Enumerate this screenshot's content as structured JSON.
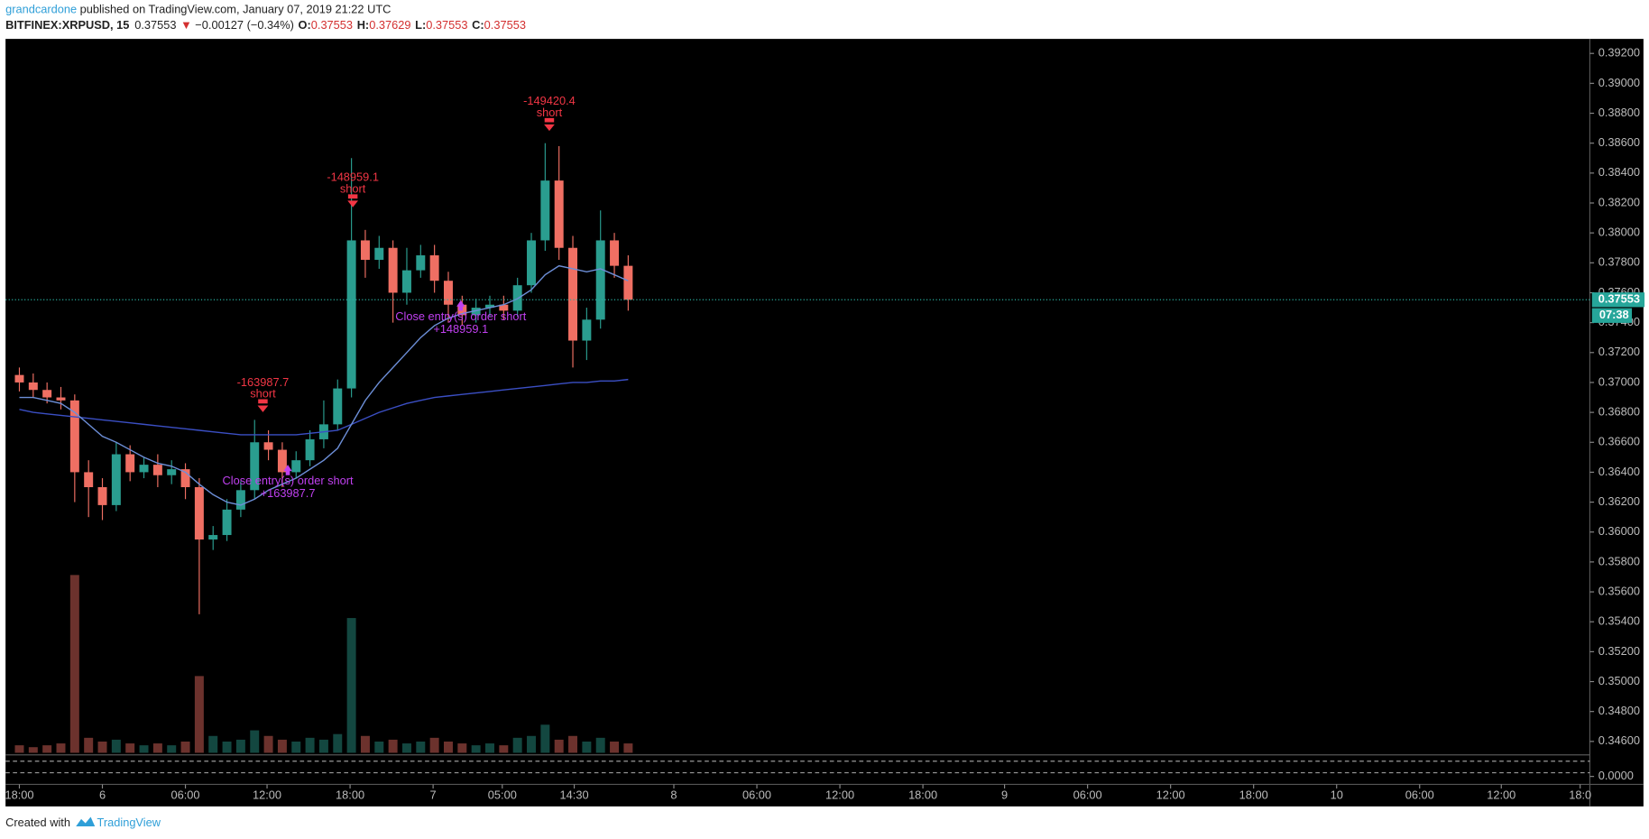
{
  "header": {
    "author": "grandcardone",
    "published": "published on TradingView.com, January 07, 2019 21:22 UTC",
    "symbol": "BITFINEX:XRPUSD, 15",
    "last": "0.37553",
    "change": "−0.00127 (−0.34%)",
    "ohlc": [
      {
        "key": "O:",
        "value": "0.37553"
      },
      {
        "key": "H:",
        "value": "0.37629"
      },
      {
        "key": "L:",
        "value": "0.37553"
      },
      {
        "key": "C:",
        "value": "0.37553"
      }
    ]
  },
  "footer": {
    "text": "Created with",
    "brand": "TradingView"
  },
  "chart_data": {
    "type": "candlestick",
    "x": [
      0,
      1,
      2,
      3,
      4,
      5,
      6,
      7,
      8,
      9,
      10,
      11,
      12,
      13,
      14,
      15,
      16,
      17,
      18,
      19,
      20,
      21,
      22,
      23,
      24,
      25,
      26,
      27,
      28,
      29,
      30,
      31,
      32,
      33,
      34,
      35,
      36,
      37,
      38,
      39,
      40,
      41,
      42,
      43,
      44
    ],
    "open": [
      0.3705,
      0.37,
      0.3695,
      0.369,
      0.3688,
      0.364,
      0.363,
      0.3618,
      0.3652,
      0.364,
      0.3645,
      0.3638,
      0.3642,
      0.363,
      0.3595,
      0.3598,
      0.3615,
      0.3628,
      0.366,
      0.3655,
      0.364,
      0.3648,
      0.3662,
      0.3672,
      0.3696,
      0.3795,
      0.3782,
      0.379,
      0.376,
      0.3775,
      0.3785,
      0.3768,
      0.3752,
      0.3745,
      0.375,
      0.3752,
      0.3748,
      0.3765,
      0.3795,
      0.3835,
      0.379,
      0.3728,
      0.3742,
      0.3795,
      0.3778
    ],
    "high": [
      0.371,
      0.3706,
      0.37,
      0.3697,
      0.3692,
      0.3648,
      0.3636,
      0.366,
      0.3658,
      0.365,
      0.3652,
      0.3648,
      0.3646,
      0.3636,
      0.3604,
      0.3622,
      0.3634,
      0.3675,
      0.3668,
      0.366,
      0.3654,
      0.3668,
      0.3688,
      0.3702,
      0.385,
      0.3802,
      0.3798,
      0.3795,
      0.379,
      0.3792,
      0.3792,
      0.3774,
      0.3758,
      0.3756,
      0.3758,
      0.3758,
      0.377,
      0.38,
      0.386,
      0.3858,
      0.3798,
      0.375,
      0.3815,
      0.38,
      0.3785
    ],
    "low": [
      0.3694,
      0.369,
      0.3686,
      0.3682,
      0.362,
      0.361,
      0.3608,
      0.3614,
      0.3634,
      0.3636,
      0.363,
      0.3632,
      0.3622,
      0.3545,
      0.3588,
      0.3594,
      0.361,
      0.3622,
      0.3648,
      0.363,
      0.3636,
      0.3644,
      0.3656,
      0.3668,
      0.369,
      0.377,
      0.3776,
      0.374,
      0.3752,
      0.377,
      0.376,
      0.374,
      0.3738,
      0.374,
      0.3744,
      0.3742,
      0.3744,
      0.376,
      0.3788,
      0.3782,
      0.371,
      0.3715,
      0.3736,
      0.377,
      0.3748
    ],
    "close": [
      0.37,
      0.3695,
      0.369,
      0.3688,
      0.364,
      0.363,
      0.3618,
      0.3652,
      0.364,
      0.3645,
      0.3638,
      0.3642,
      0.363,
      0.3595,
      0.3598,
      0.3615,
      0.3628,
      0.366,
      0.3655,
      0.364,
      0.3648,
      0.3662,
      0.3672,
      0.3696,
      0.3795,
      0.3782,
      0.379,
      0.376,
      0.3775,
      0.3785,
      0.3768,
      0.3752,
      0.3745,
      0.375,
      0.3752,
      0.3748,
      0.3765,
      0.3795,
      0.3835,
      0.379,
      0.3728,
      0.3742,
      0.3795,
      0.3778,
      0.37553
    ],
    "up_color": "#2a9d8f",
    "down_color": "#ef6f63",
    "volume": [
      4,
      3,
      4,
      5,
      95,
      8,
      6,
      7,
      5,
      4,
      5,
      4,
      6,
      41,
      9,
      6,
      7,
      12,
      9,
      7,
      6,
      8,
      7,
      10,
      72,
      9,
      6,
      7,
      5,
      6,
      8,
      6,
      5,
      4,
      5,
      4,
      8,
      9,
      15,
      7,
      9,
      6,
      8,
      6,
      5
    ],
    "volume_lim": [
      0,
      100
    ],
    "series": [
      {
        "color": "#3b4fc4",
        "values": [
          0.3682,
          0.368,
          0.3679,
          0.3678,
          0.3677,
          0.3676,
          0.3675,
          0.3674,
          0.3673,
          0.3672,
          0.3671,
          0.367,
          0.3669,
          0.3668,
          0.3667,
          0.3666,
          0.3665,
          0.3665,
          0.3665,
          0.3665,
          0.3665,
          0.3666,
          0.3667,
          0.3668,
          0.3672,
          0.3676,
          0.368,
          0.3683,
          0.3686,
          0.3688,
          0.369,
          0.3691,
          0.3692,
          0.3693,
          0.3694,
          0.3695,
          0.3696,
          0.3697,
          0.3698,
          0.3699,
          0.37,
          0.37,
          0.3701,
          0.3701,
          0.3702
        ]
      },
      {
        "color": "#6d8fd8",
        "values": [
          0.369,
          0.369,
          0.3688,
          0.3686,
          0.368,
          0.3672,
          0.3664,
          0.366,
          0.3655,
          0.365,
          0.3646,
          0.3644,
          0.364,
          0.3632,
          0.3625,
          0.362,
          0.3618,
          0.3622,
          0.3628,
          0.3632,
          0.3636,
          0.3642,
          0.3648,
          0.3656,
          0.3672,
          0.3688,
          0.37,
          0.371,
          0.372,
          0.373,
          0.3738,
          0.3743,
          0.3746,
          0.3748,
          0.375,
          0.3752,
          0.3756,
          0.3762,
          0.3772,
          0.3778,
          0.3776,
          0.3774,
          0.3776,
          0.3772,
          0.3768
        ]
      }
    ],
    "entries": [
      {
        "x": 17.6,
        "price": 0.368,
        "label": "-163987.7",
        "note": "short"
      },
      {
        "x": 24.1,
        "price": 0.3817,
        "label": "-148959.1",
        "note": "short"
      },
      {
        "x": 38.3,
        "price": 0.3868,
        "label": "-149420.4",
        "note": "short"
      }
    ],
    "exits": [
      {
        "x": 19.4,
        "price": 0.3645,
        "text": "Close entry(s) order short",
        "label": "+163987.7"
      },
      {
        "x": 31.9,
        "price": 0.3755,
        "text": "Close entry(s) order short",
        "label": "+148959.1"
      }
    ],
    "last_price": 0.37553,
    "countdown": "07:38",
    "xlim": [
      -1,
      113.5
    ],
    "ylim": [
      0.3451,
      0.3929
    ],
    "xticks": [
      {
        "value": 0,
        "label": "18:00"
      },
      {
        "value": 6,
        "label": "6"
      },
      {
        "value": 12,
        "label": "06:00"
      },
      {
        "value": 17.9,
        "label": "12:00"
      },
      {
        "value": 23.9,
        "label": "18:00"
      },
      {
        "value": 29.9,
        "label": "7"
      },
      {
        "value": 34.9,
        "label": "05:00"
      },
      {
        "value": 40.1,
        "label": "14:30"
      },
      {
        "value": 47.3,
        "label": "8"
      },
      {
        "value": 53.3,
        "label": "06:00"
      },
      {
        "value": 59.3,
        "label": "12:00"
      },
      {
        "value": 65.3,
        "label": "18:00"
      },
      {
        "value": 71.2,
        "label": "9"
      },
      {
        "value": 77.2,
        "label": "06:00"
      },
      {
        "value": 83.2,
        "label": "12:00"
      },
      {
        "value": 89.2,
        "label": "18:00"
      },
      {
        "value": 95.2,
        "label": "10"
      },
      {
        "value": 101.2,
        "label": "06:00"
      },
      {
        "value": 107.1,
        "label": "12:00"
      },
      {
        "value": 112.8,
        "label": "18:0"
      }
    ],
    "yticks": [
      {
        "value": 0.392,
        "label": "0.39200"
      },
      {
        "value": 0.39,
        "label": "0.39000"
      },
      {
        "value": 0.388,
        "label": "0.38800"
      },
      {
        "value": 0.386,
        "label": "0.38600"
      },
      {
        "value": 0.384,
        "label": "0.38400"
      },
      {
        "value": 0.382,
        "label": "0.38200"
      },
      {
        "value": 0.38,
        "label": "0.38000"
      },
      {
        "value": 0.378,
        "label": "0.37800"
      },
      {
        "value": 0.376,
        "label": "0.37600"
      },
      {
        "value": 0.374,
        "label": "0.37400"
      },
      {
        "value": 0.372,
        "label": "0.37200"
      },
      {
        "value": 0.37,
        "label": "0.37000"
      },
      {
        "value": 0.368,
        "label": "0.36800"
      },
      {
        "value": 0.366,
        "label": "0.36600"
      },
      {
        "value": 0.364,
        "label": "0.36400"
      },
      {
        "value": 0.362,
        "label": "0.36200"
      },
      {
        "value": 0.36,
        "label": "0.36000"
      },
      {
        "value": 0.358,
        "label": "0.35800"
      },
      {
        "value": 0.356,
        "label": "0.35600"
      },
      {
        "value": 0.354,
        "label": "0.35400"
      },
      {
        "value": 0.352,
        "label": "0.35200"
      },
      {
        "value": 0.35,
        "label": "0.35000"
      },
      {
        "value": 0.348,
        "label": "0.34800"
      },
      {
        "value": 0.346,
        "label": "0.34600"
      }
    ],
    "osc_ylim": [
      -0.5,
      1.5
    ],
    "osc_yticks": [
      {
        "value": 0,
        "label": "0.0000"
      }
    ]
  }
}
